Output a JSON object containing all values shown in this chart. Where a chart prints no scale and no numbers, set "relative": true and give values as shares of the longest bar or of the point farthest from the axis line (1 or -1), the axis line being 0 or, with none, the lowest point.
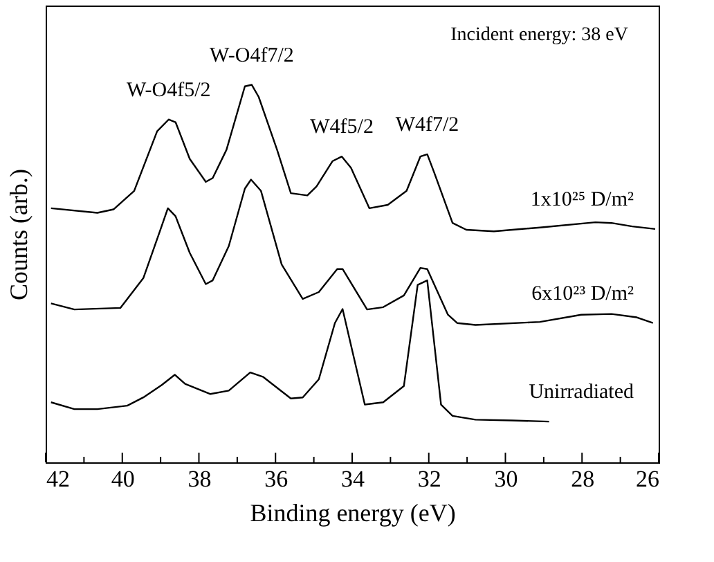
{
  "chart_data": {
    "type": "line",
    "relative": true,
    "xlabel": "Binding energy (eV)",
    "ylabel": "Counts (arb.)",
    "xlim": [
      42,
      26
    ],
    "xticks": [
      42,
      {
        "value": 41,
        "label": null
      },
      40,
      {
        "value": 39,
        "label": null
      },
      38,
      {
        "value": 37,
        "label": null
      },
      36,
      {
        "value": 35,
        "label": null
      },
      34,
      {
        "value": 33,
        "label": null
      },
      32,
      {
        "value": 31,
        "label": null
      },
      30,
      {
        "value": 29,
        "label": null
      },
      28,
      {
        "value": 27,
        "label": null
      },
      26
    ],
    "grid": false,
    "marker": "none",
    "line_style": "solid",
    "annotations": [
      "Incident energy: 38 eV",
      {
        "text": "W-O4f5/2",
        "x": 38.79,
        "y": 0.908
      },
      {
        "text": "W-O4f7/2",
        "x": 36.62,
        "y": 1.0
      },
      {
        "text": "W4f5/2",
        "x": 34.27,
        "y": 0.81
      },
      {
        "text": "W4f7/2",
        "x": 32.04,
        "y": 0.816
      }
    ],
    "series": [
      {
        "name": "1x10²⁵ D/m²",
        "color": "#000000",
        "x": [
          41.86,
          40.65,
          40.23,
          39.69,
          39.09,
          38.79,
          38.61,
          38.24,
          37.82,
          37.64,
          37.28,
          36.8,
          36.62,
          36.44,
          35.96,
          35.6,
          35.17,
          34.93,
          34.51,
          34.27,
          34.03,
          33.55,
          33.07,
          32.58,
          32.22,
          32.04,
          31.86,
          31.38,
          31.02,
          30.3,
          29.1,
          27.65,
          27.23,
          26.69,
          26.09
        ],
        "values": [
          0.673,
          0.661,
          0.67,
          0.719,
          0.877,
          0.908,
          0.901,
          0.804,
          0.743,
          0.753,
          0.828,
          0.996,
          1.0,
          0.968,
          0.828,
          0.713,
          0.707,
          0.731,
          0.798,
          0.81,
          0.78,
          0.673,
          0.682,
          0.719,
          0.81,
          0.816,
          0.768,
          0.634,
          0.616,
          0.612,
          0.622,
          0.636,
          0.634,
          0.625,
          0.618
        ]
      },
      {
        "name": "6x10²³ D/m²",
        "color": "#000000",
        "x": [
          41.86,
          41.25,
          40.05,
          39.45,
          39.03,
          38.81,
          38.61,
          38.24,
          37.82,
          37.64,
          37.22,
          36.8,
          36.64,
          36.38,
          35.84,
          35.29,
          34.87,
          34.39,
          34.25,
          33.61,
          33.19,
          32.65,
          32.22,
          32.04,
          31.5,
          31.26,
          30.78,
          29.1,
          28.02,
          27.23,
          26.57,
          26.15
        ],
        "values": [
          0.421,
          0.405,
          0.409,
          0.488,
          0.609,
          0.673,
          0.652,
          0.555,
          0.472,
          0.482,
          0.573,
          0.725,
          0.749,
          0.719,
          0.524,
          0.433,
          0.451,
          0.512,
          0.512,
          0.405,
          0.411,
          0.442,
          0.515,
          0.512,
          0.391,
          0.369,
          0.364,
          0.372,
          0.391,
          0.393,
          0.384,
          0.369
        ]
      },
      {
        "name": "Unirradiated",
        "color": "#000000",
        "x": [
          41.86,
          41.25,
          40.65,
          39.87,
          39.45,
          38.97,
          38.63,
          38.36,
          37.7,
          37.22,
          36.66,
          36.32,
          35.6,
          35.29,
          34.87,
          34.45,
          34.25,
          33.67,
          33.19,
          32.65,
          32.29,
          32.04,
          31.68,
          31.38,
          30.78,
          29.82,
          28.86
        ],
        "values": [
          0.159,
          0.141,
          0.141,
          0.15,
          0.172,
          0.205,
          0.232,
          0.208,
          0.181,
          0.19,
          0.238,
          0.226,
          0.169,
          0.172,
          0.22,
          0.369,
          0.406,
          0.153,
          0.159,
          0.202,
          0.47,
          0.482,
          0.153,
          0.123,
          0.113,
          0.111,
          0.108
        ]
      }
    ]
  }
}
